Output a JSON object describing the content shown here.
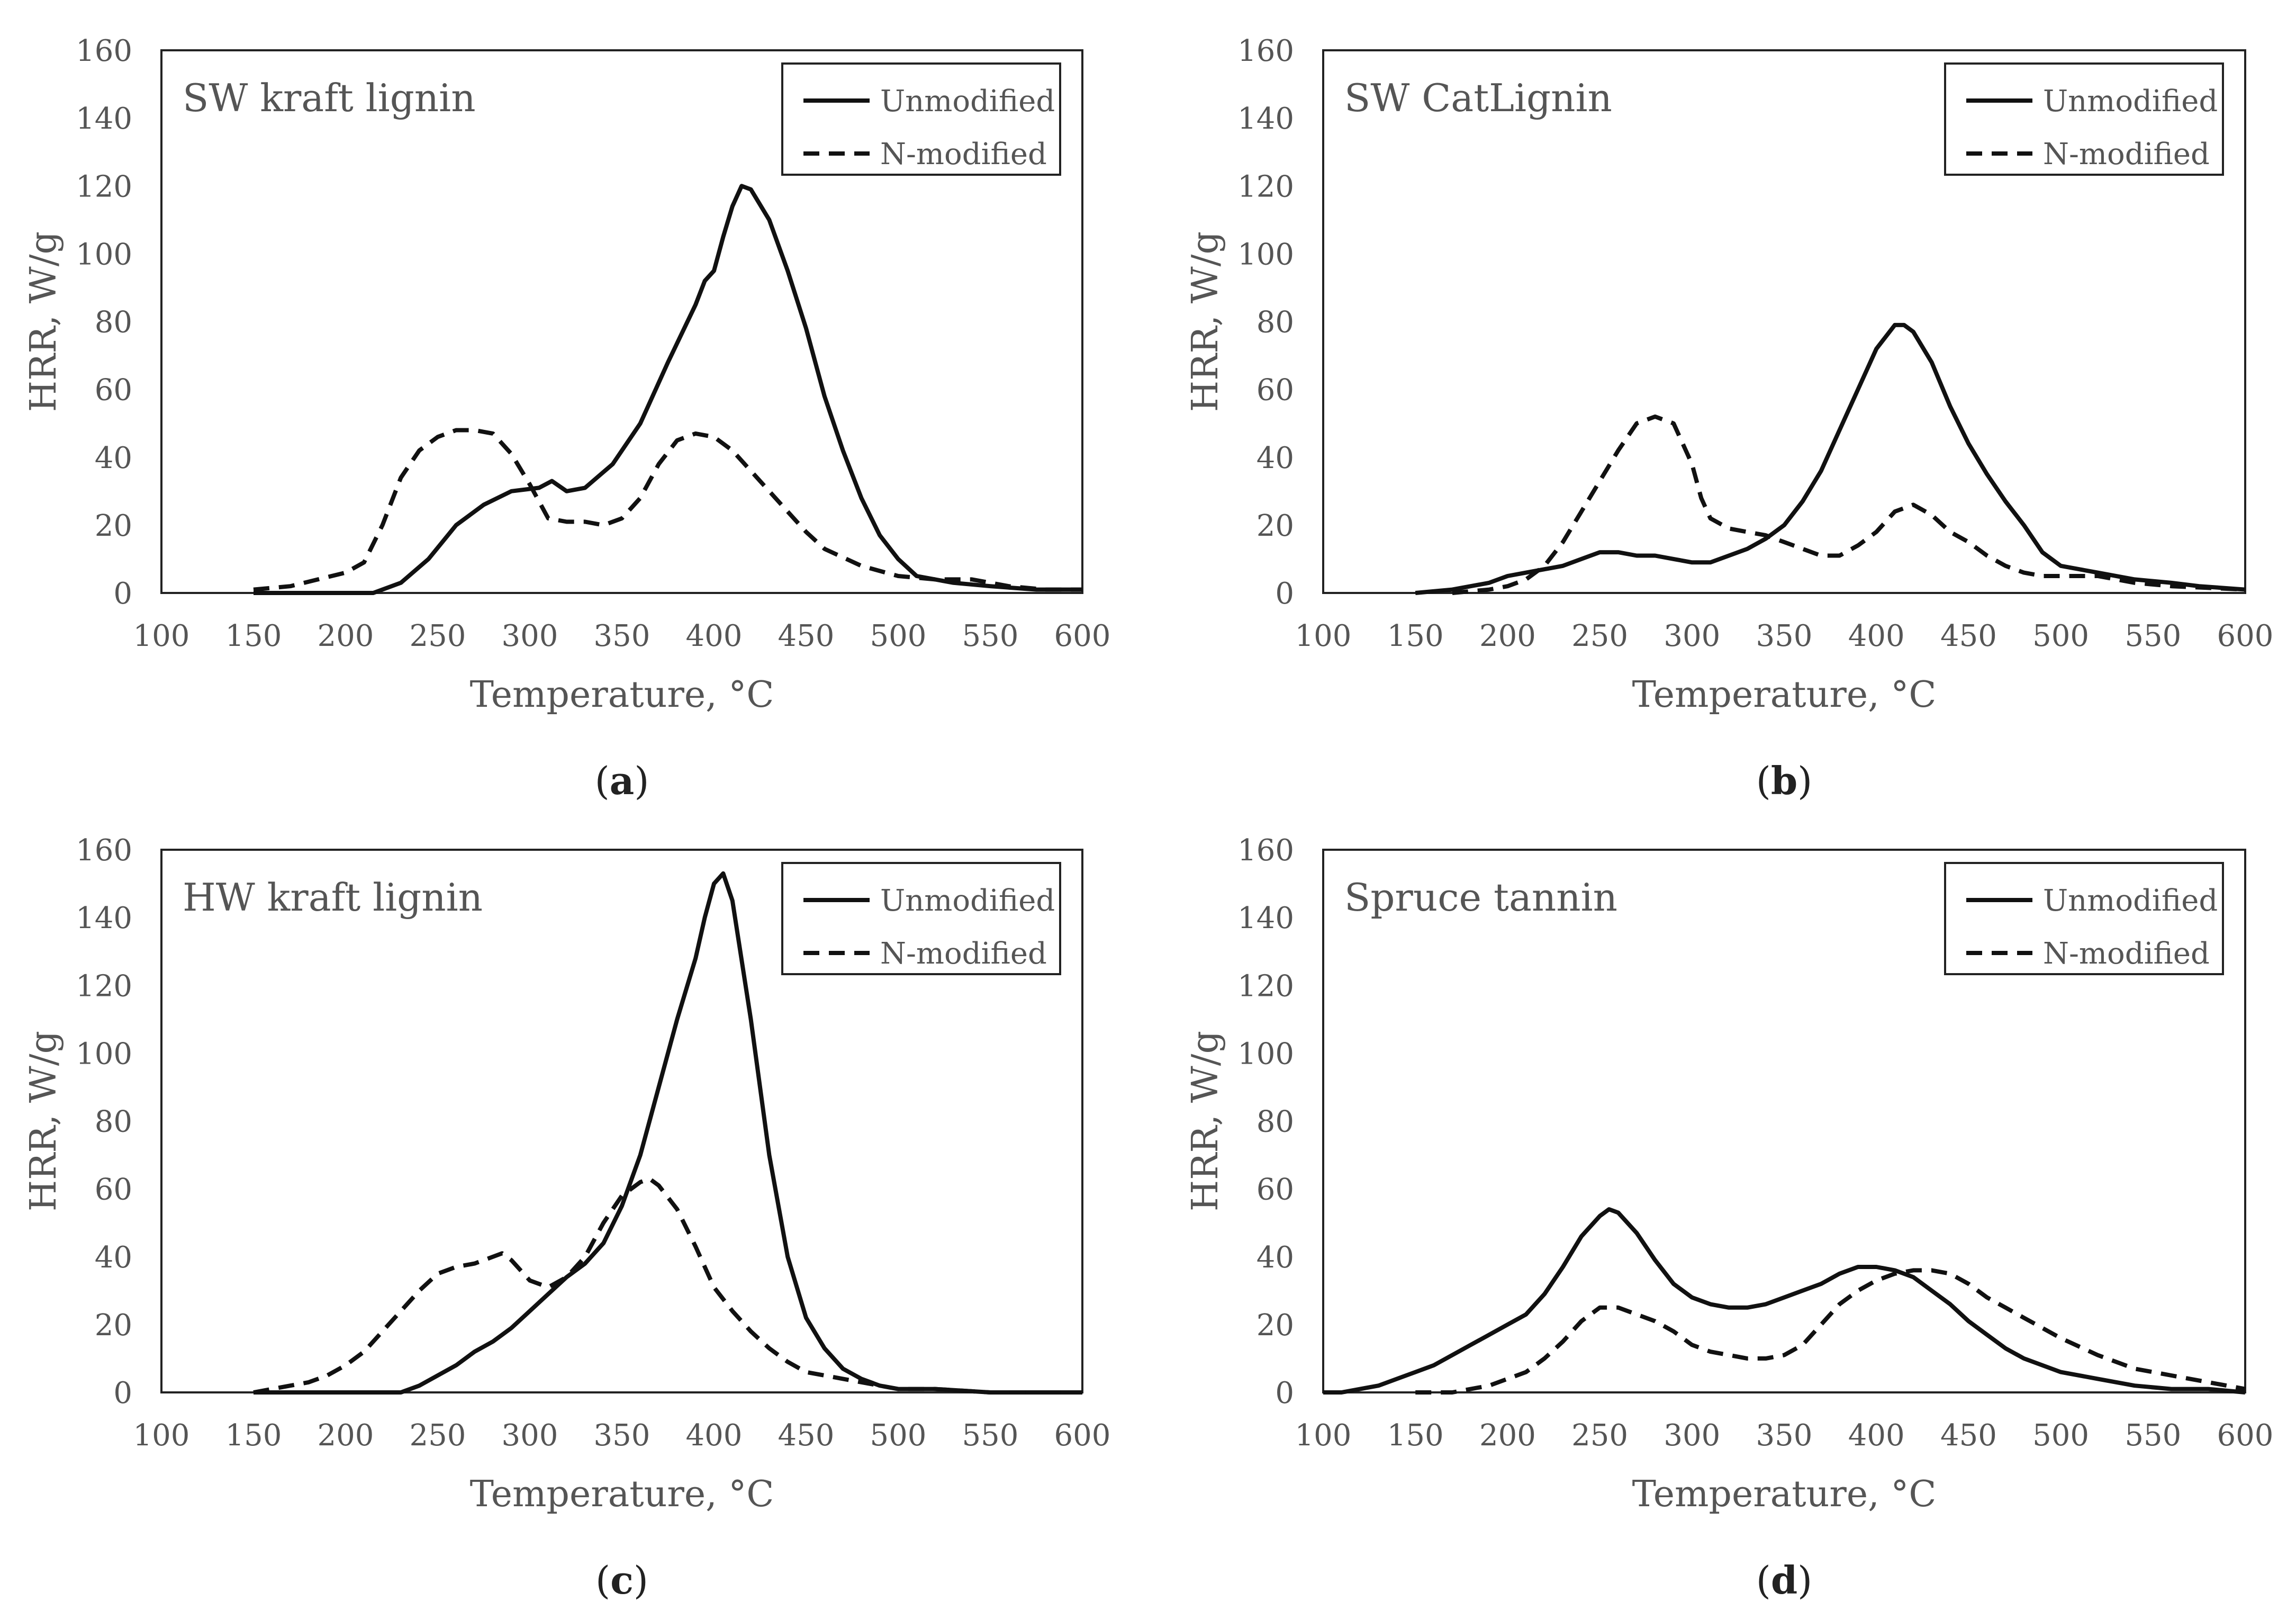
{
  "chart_data": [
    {
      "type": "line",
      "panel_label": "a",
      "title": "SW kraft lignin",
      "xlabel": "Temperature, °C",
      "ylabel": "HRR, W/g",
      "xlim": [
        100,
        600
      ],
      "ylim": [
        0,
        160
      ],
      "xticks": [
        "100",
        "150",
        "200",
        "250",
        "300",
        "350",
        "400",
        "450",
        "500",
        "550",
        "600"
      ],
      "yticks": [
        "0",
        "20",
        "40",
        "60",
        "80",
        "100",
        "120",
        "140",
        "160"
      ],
      "legend": "top-right",
      "grid": false,
      "series": [
        {
          "name": "Unmodified",
          "style": "solid",
          "x": [
            150,
            200,
            215,
            230,
            245,
            260,
            275,
            290,
            305,
            312,
            320,
            330,
            345,
            360,
            375,
            390,
            395,
            400,
            405,
            410,
            415,
            420,
            430,
            440,
            450,
            460,
            470,
            480,
            490,
            500,
            510,
            530,
            550,
            575,
            600
          ],
          "y": [
            0,
            0,
            0,
            3,
            10,
            20,
            26,
            30,
            31,
            33,
            30,
            31,
            38,
            50,
            68,
            85,
            92,
            95,
            105,
            114,
            120,
            119,
            110,
            95,
            78,
            58,
            42,
            28,
            17,
            10,
            5,
            3,
            2,
            1,
            1
          ]
        },
        {
          "name": "N-modified",
          "style": "dashed",
          "x": [
            150,
            170,
            185,
            200,
            210,
            220,
            230,
            240,
            250,
            260,
            270,
            280,
            290,
            300,
            310,
            320,
            330,
            340,
            350,
            360,
            370,
            380,
            390,
            400,
            410,
            420,
            430,
            440,
            450,
            460,
            480,
            500,
            520,
            540,
            560,
            580,
            600
          ],
          "y": [
            1,
            2,
            4,
            6,
            9,
            20,
            34,
            42,
            46,
            48,
            48,
            47,
            41,
            32,
            22,
            21,
            21,
            20,
            22,
            28,
            38,
            45,
            47,
            46,
            42,
            36,
            30,
            24,
            18,
            13,
            8,
            5,
            4,
            4,
            2,
            1,
            1
          ]
        }
      ]
    },
    {
      "type": "line",
      "panel_label": "b",
      "title": "SW CatLignin",
      "xlabel": "Temperature, °C",
      "ylabel": "HRR, W/g",
      "xlim": [
        100,
        600
      ],
      "ylim": [
        0,
        160
      ],
      "xticks": [
        "100",
        "150",
        "200",
        "250",
        "300",
        "350",
        "400",
        "450",
        "500",
        "550",
        "600"
      ],
      "yticks": [
        "0",
        "20",
        "40",
        "60",
        "80",
        "100",
        "120",
        "140",
        "160"
      ],
      "legend": "top-right",
      "grid": false,
      "series": [
        {
          "name": "Unmodified",
          "style": "solid",
          "x": [
            150,
            170,
            190,
            200,
            210,
            220,
            230,
            240,
            250,
            260,
            270,
            280,
            290,
            300,
            310,
            320,
            330,
            340,
            350,
            360,
            370,
            380,
            390,
            400,
            410,
            415,
            420,
            430,
            440,
            450,
            460,
            470,
            480,
            490,
            500,
            520,
            540,
            560,
            575,
            600
          ],
          "y": [
            0,
            1,
            3,
            5,
            6,
            7,
            8,
            10,
            12,
            12,
            11,
            11,
            10,
            9,
            9,
            11,
            13,
            16,
            20,
            27,
            36,
            48,
            60,
            72,
            79,
            79,
            77,
            68,
            55,
            44,
            35,
            27,
            20,
            12,
            8,
            6,
            4,
            3,
            2,
            1
          ]
        },
        {
          "name": "N-modified",
          "style": "dashed",
          "x": [
            170,
            190,
            200,
            210,
            220,
            230,
            240,
            250,
            260,
            270,
            280,
            290,
            300,
            305,
            310,
            320,
            330,
            340,
            350,
            360,
            370,
            380,
            390,
            400,
            410,
            420,
            430,
            440,
            450,
            460,
            470,
            480,
            490,
            500,
            520,
            540,
            560,
            600
          ],
          "y": [
            0,
            1,
            2,
            4,
            8,
            15,
            24,
            33,
            42,
            50,
            52,
            50,
            38,
            28,
            22,
            19,
            18,
            17,
            15,
            13,
            11,
            11,
            14,
            18,
            24,
            26,
            23,
            18,
            15,
            11,
            8,
            6,
            5,
            5,
            5,
            3,
            2,
            1
          ]
        }
      ]
    },
    {
      "type": "line",
      "panel_label": "c",
      "title": "HW kraft lignin",
      "xlabel": "Temperature, °C",
      "ylabel": "HRR, W/g",
      "xlim": [
        100,
        600
      ],
      "ylim": [
        0,
        160
      ],
      "xticks": [
        "100",
        "150",
        "200",
        "250",
        "300",
        "350",
        "400",
        "450",
        "500",
        "550",
        "600"
      ],
      "yticks": [
        "0",
        "20",
        "40",
        "60",
        "80",
        "100",
        "120",
        "140",
        "160"
      ],
      "legend": "top-right",
      "grid": false,
      "series": [
        {
          "name": "Unmodified",
          "style": "solid",
          "x": [
            150,
            200,
            230,
            240,
            250,
            260,
            270,
            280,
            290,
            300,
            310,
            320,
            330,
            340,
            350,
            360,
            370,
            380,
            390,
            395,
            400,
            405,
            410,
            420,
            430,
            440,
            450,
            460,
            470,
            480,
            490,
            500,
            520,
            550,
            600
          ],
          "y": [
            0,
            0,
            0,
            2,
            5,
            8,
            12,
            15,
            19,
            24,
            29,
            34,
            38,
            44,
            55,
            70,
            90,
            110,
            128,
            140,
            150,
            153,
            145,
            110,
            70,
            40,
            22,
            13,
            7,
            4,
            2,
            1,
            1,
            0,
            0
          ]
        },
        {
          "name": "N-modified",
          "style": "dashed",
          "x": [
            150,
            160,
            170,
            180,
            190,
            200,
            210,
            220,
            230,
            240,
            250,
            260,
            270,
            280,
            285,
            290,
            300,
            310,
            320,
            330,
            340,
            350,
            360,
            365,
            370,
            380,
            390,
            400,
            410,
            420,
            430,
            440,
            450,
            460,
            470,
            480,
            490,
            500,
            520,
            550,
            600
          ],
          "y": [
            0,
            1,
            2,
            3,
            5,
            8,
            12,
            18,
            24,
            30,
            35,
            37,
            38,
            40,
            41,
            39,
            33,
            31,
            34,
            40,
            50,
            58,
            62,
            63,
            61,
            54,
            43,
            31,
            24,
            18,
            13,
            9,
            6,
            5,
            4,
            3,
            2,
            1,
            1,
            0,
            0
          ]
        }
      ]
    },
    {
      "type": "line",
      "panel_label": "d",
      "title": "Spruce tannin",
      "xlabel": "Temperature, °C",
      "ylabel": "HRR, W/g",
      "xlim": [
        100,
        600
      ],
      "ylim": [
        0,
        160
      ],
      "xticks": [
        "100",
        "150",
        "200",
        "250",
        "300",
        "350",
        "400",
        "450",
        "500",
        "550",
        "600"
      ],
      "yticks": [
        "0",
        "20",
        "40",
        "60",
        "80",
        "100",
        "120",
        "140",
        "160"
      ],
      "legend": "top-right",
      "grid": false,
      "series": [
        {
          "name": "Unmodified",
          "style": "solid",
          "x": [
            100,
            110,
            120,
            130,
            140,
            150,
            160,
            170,
            180,
            190,
            200,
            210,
            220,
            230,
            240,
            250,
            255,
            260,
            270,
            280,
            290,
            300,
            310,
            320,
            330,
            340,
            350,
            360,
            370,
            380,
            390,
            400,
            410,
            420,
            430,
            440,
            450,
            460,
            470,
            480,
            490,
            500,
            520,
            540,
            560,
            580,
            600
          ],
          "y": [
            0,
            0,
            1,
            2,
            4,
            6,
            8,
            11,
            14,
            17,
            20,
            23,
            29,
            37,
            46,
            52,
            54,
            53,
            47,
            39,
            32,
            28,
            26,
            25,
            25,
            26,
            28,
            30,
            32,
            35,
            37,
            37,
            36,
            34,
            30,
            26,
            21,
            17,
            13,
            10,
            8,
            6,
            4,
            2,
            1,
            1,
            0
          ]
        },
        {
          "name": "N-modified",
          "style": "dashed",
          "x": [
            150,
            170,
            180,
            190,
            200,
            210,
            220,
            230,
            240,
            250,
            260,
            270,
            280,
            290,
            300,
            310,
            320,
            330,
            340,
            350,
            360,
            370,
            380,
            390,
            400,
            410,
            420,
            430,
            440,
            450,
            460,
            470,
            480,
            490,
            500,
            520,
            540,
            560,
            580,
            600
          ],
          "y": [
            0,
            0,
            1,
            2,
            4,
            6,
            10,
            15,
            21,
            25,
            25,
            23,
            21,
            18,
            14,
            12,
            11,
            10,
            10,
            11,
            14,
            20,
            26,
            30,
            33,
            35,
            36,
            36,
            35,
            32,
            28,
            25,
            22,
            19,
            16,
            11,
            7,
            5,
            3,
            1
          ]
        }
      ]
    }
  ]
}
